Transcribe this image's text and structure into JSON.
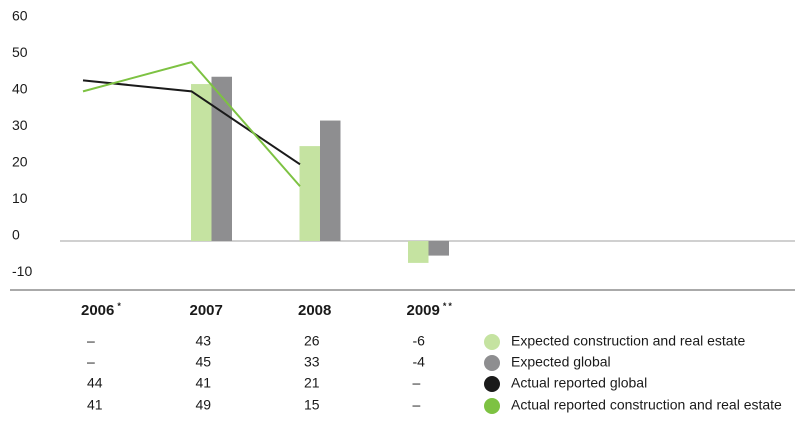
{
  "chart_data": {
    "type": "bar",
    "categories": [
      "2006",
      "2007",
      "2008",
      "2009"
    ],
    "category_notes": [
      "*",
      null,
      null,
      "**"
    ],
    "ylim": [
      -10,
      60
    ],
    "yticks": [
      -10,
      0,
      10,
      20,
      30,
      40,
      50,
      60
    ],
    "series": [
      {
        "name": "Expected construction and real estate",
        "type": "bar",
        "color": "#c5e3a1",
        "values": [
          null,
          43,
          26,
          -6
        ],
        "value_labels": [
          "–",
          "43",
          "26",
          "-6"
        ]
      },
      {
        "name": "Expected global",
        "type": "bar",
        "color": "#8e8e90",
        "values": [
          null,
          45,
          33,
          -4
        ],
        "value_labels": [
          "–",
          "45",
          "33",
          "-4"
        ]
      },
      {
        "name": "Actual reported global",
        "type": "line",
        "color": "#1a1a1a",
        "values": [
          44,
          41,
          21,
          null
        ],
        "value_labels": [
          "44",
          "41",
          "21",
          "–"
        ]
      },
      {
        "name": "Actual reported construction and real estate",
        "type": "line",
        "color": "#7dc242",
        "values": [
          41,
          49,
          15,
          null
        ],
        "value_labels": [
          "41",
          "49",
          "15",
          "–"
        ]
      }
    ]
  }
}
